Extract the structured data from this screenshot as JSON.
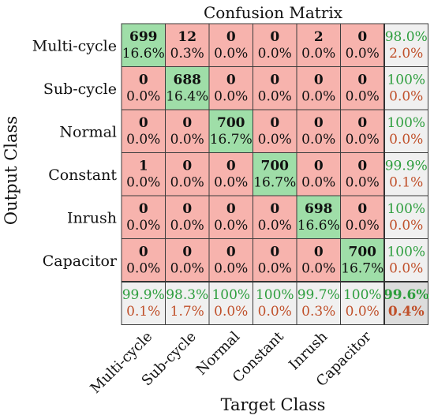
{
  "chart_data": {
    "type": "heatmap",
    "title": "Confusion Matrix",
    "xlabel": "Target Class",
    "ylabel": "Output Class",
    "classes": [
      "Multi-cycle",
      "Sub-cycle",
      "Normal",
      "Constant",
      "Inrush",
      "Capacitor"
    ],
    "counts": [
      [
        699,
        12,
        0,
        0,
        2,
        0
      ],
      [
        0,
        688,
        0,
        0,
        0,
        0
      ],
      [
        0,
        0,
        700,
        0,
        0,
        0
      ],
      [
        1,
        0,
        0,
        700,
        0,
        0
      ],
      [
        0,
        0,
        0,
        0,
        698,
        0
      ],
      [
        0,
        0,
        0,
        0,
        0,
        700
      ]
    ],
    "percents": [
      [
        "16.6%",
        "0.3%",
        "0.0%",
        "0.0%",
        "0.0%",
        "0.0%"
      ],
      [
        "0.0%",
        "16.4%",
        "0.0%",
        "0.0%",
        "0.0%",
        "0.0%"
      ],
      [
        "0.0%",
        "0.0%",
        "16.7%",
        "0.0%",
        "0.0%",
        "0.0%"
      ],
      [
        "0.0%",
        "0.0%",
        "0.0%",
        "16.7%",
        "0.0%",
        "0.0%"
      ],
      [
        "0.0%",
        "0.0%",
        "0.0%",
        "0.0%",
        "16.6%",
        "0.0%"
      ],
      [
        "0.0%",
        "0.0%",
        "0.0%",
        "0.0%",
        "0.0%",
        "16.7%"
      ]
    ],
    "row_summary": [
      [
        "98.0%",
        "2.0%"
      ],
      [
        "100%",
        "0.0%"
      ],
      [
        "100%",
        "0.0%"
      ],
      [
        "99.9%",
        "0.1%"
      ],
      [
        "100%",
        "0.0%"
      ],
      [
        "100%",
        "0.0%"
      ]
    ],
    "col_summary": [
      [
        "99.9%",
        "0.1%"
      ],
      [
        "98.3%",
        "1.7%"
      ],
      [
        "100%",
        "0.0%"
      ],
      [
        "100%",
        "0.0%"
      ],
      [
        "99.7%",
        "0.3%"
      ],
      [
        "100%",
        "0.0%"
      ]
    ],
    "overall": [
      "99.6%",
      "0.4%"
    ],
    "colors": {
      "diagonal": "#9fdea8",
      "off_diagonal": "#f7b3ad",
      "summary": "#f0f0f0",
      "correct_text": "#2e9e3e",
      "error_text": "#c0502a"
    }
  }
}
